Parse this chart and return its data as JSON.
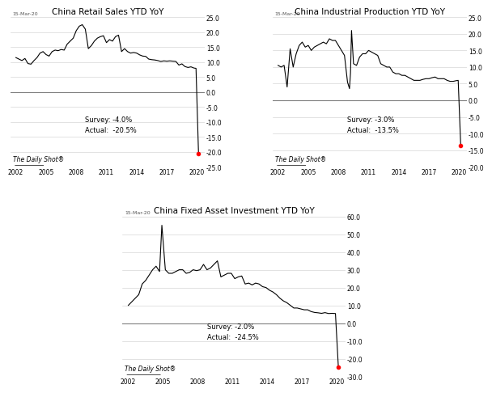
{
  "title1": "China Retail Sales YTD YoY",
  "title2": "China Industrial Production YTD YoY",
  "title3": "China Fixed Asset Investment YTD YoY",
  "date_label": "15-Mar-20",
  "watermark": "The Daily Shot®",
  "chart1": {
    "survey": -4.0,
    "actual": -20.5,
    "ylim": [
      -25.0,
      25.0
    ],
    "yticks": [
      -25.0,
      -20.0,
      -15.0,
      -10.0,
      -5.0,
      0.0,
      5.0,
      10.0,
      15.0,
      20.0,
      25.0
    ],
    "survey_text": "Survey: -4.0%",
    "actual_text": "Actual:  -20.5%",
    "data_x": [
      2002,
      2002.3,
      2002.6,
      2002.9,
      2003.2,
      2003.5,
      2003.8,
      2004.1,
      2004.4,
      2004.7,
      2005.0,
      2005.3,
      2005.6,
      2005.9,
      2006.2,
      2006.5,
      2006.8,
      2007.1,
      2007.4,
      2007.7,
      2008.0,
      2008.3,
      2008.6,
      2008.9,
      2009.2,
      2009.5,
      2009.8,
      2010.1,
      2010.4,
      2010.7,
      2011.0,
      2011.3,
      2011.6,
      2011.9,
      2012.2,
      2012.5,
      2012.8,
      2013.1,
      2013.4,
      2013.7,
      2014.0,
      2014.3,
      2014.6,
      2014.9,
      2015.2,
      2015.5,
      2015.8,
      2016.1,
      2016.4,
      2016.7,
      2017.0,
      2017.3,
      2017.6,
      2017.9,
      2018.2,
      2018.5,
      2018.8,
      2019.1,
      2019.4,
      2019.7,
      2019.9,
      2020.15
    ],
    "data_y": [
      11.5,
      11.0,
      10.5,
      11.2,
      9.5,
      9.3,
      10.5,
      11.5,
      13.0,
      13.5,
      12.5,
      12.0,
      13.5,
      14.0,
      13.8,
      14.2,
      14.0,
      16.0,
      17.0,
      18.0,
      20.5,
      22.0,
      22.5,
      21.0,
      14.5,
      15.5,
      17.0,
      18.0,
      18.5,
      18.8,
      16.5,
      17.5,
      17.0,
      18.5,
      19.0,
      13.5,
      14.5,
      13.5,
      13.0,
      13.2,
      13.0,
      12.4,
      12.0,
      11.9,
      11.0,
      10.8,
      10.7,
      10.5,
      10.2,
      10.4,
      10.3,
      10.4,
      10.3,
      10.2,
      9.0,
      9.4,
      8.5,
      8.2,
      8.4,
      8.0,
      7.9,
      -20.5
    ]
  },
  "chart2": {
    "survey": -3.0,
    "actual": -13.5,
    "ylim": [
      -20.0,
      25.0
    ],
    "yticks": [
      -20.0,
      -15.0,
      -10.0,
      -5.0,
      0.0,
      5.0,
      10.0,
      15.0,
      20.0,
      25.0
    ],
    "survey_text": "Survey: -3.0%",
    "actual_text": "Actual:  -13.5%",
    "data_x": [
      2002,
      2002.3,
      2002.6,
      2002.9,
      2003.2,
      2003.5,
      2003.8,
      2004.1,
      2004.4,
      2004.7,
      2005.0,
      2005.3,
      2005.6,
      2005.9,
      2006.2,
      2006.5,
      2006.8,
      2007.1,
      2007.4,
      2007.7,
      2008.0,
      2008.3,
      2008.6,
      2008.9,
      2009.1,
      2009.2,
      2009.3,
      2009.5,
      2009.8,
      2010.1,
      2010.4,
      2010.7,
      2011.0,
      2011.3,
      2011.6,
      2011.9,
      2012.2,
      2012.5,
      2012.8,
      2013.1,
      2013.4,
      2013.7,
      2014.0,
      2014.3,
      2014.6,
      2014.9,
      2015.2,
      2015.5,
      2015.8,
      2016.1,
      2016.4,
      2016.7,
      2017.0,
      2017.3,
      2017.6,
      2017.9,
      2018.2,
      2018.5,
      2018.8,
      2019.1,
      2019.4,
      2019.7,
      2019.9,
      2020.15
    ],
    "data_y": [
      10.5,
      10.0,
      10.5,
      4.0,
      15.5,
      10.0,
      14.0,
      16.5,
      17.5,
      16.0,
      16.5,
      15.0,
      16.0,
      16.5,
      17.0,
      17.5,
      17.0,
      18.5,
      18.0,
      18.0,
      16.5,
      15.0,
      13.5,
      5.5,
      3.5,
      8.3,
      21.0,
      11.0,
      10.5,
      13.0,
      14.0,
      14.0,
      15.0,
      14.5,
      14.0,
      13.5,
      11.0,
      10.5,
      10.0,
      10.0,
      8.5,
      8.0,
      8.0,
      7.5,
      7.5,
      7.0,
      6.5,
      6.0,
      6.0,
      6.0,
      6.3,
      6.5,
      6.5,
      6.8,
      7.0,
      6.5,
      6.5,
      6.5,
      6.0,
      5.7,
      5.7,
      5.9,
      6.0,
      -13.5
    ]
  },
  "chart3": {
    "survey": -2.0,
    "actual": -24.5,
    "ylim": [
      -30.0,
      60.0
    ],
    "yticks": [
      -30.0,
      -20.0,
      -10.0,
      0.0,
      10.0,
      20.0,
      30.0,
      40.0,
      50.0,
      60.0
    ],
    "survey_text": "Survey: -2.0%",
    "actual_text": "Actual:  -24.5%",
    "data_x": [
      2002,
      2002.3,
      2002.6,
      2002.9,
      2003.2,
      2003.5,
      2003.8,
      2004.1,
      2004.4,
      2004.7,
      2004.9,
      2005.2,
      2005.5,
      2005.8,
      2006.1,
      2006.4,
      2006.7,
      2007.0,
      2007.3,
      2007.6,
      2007.9,
      2008.2,
      2008.5,
      2008.8,
      2009.1,
      2009.4,
      2009.7,
      2010.0,
      2010.3,
      2010.6,
      2010.9,
      2011.2,
      2011.5,
      2011.8,
      2012.1,
      2012.4,
      2012.7,
      2013.0,
      2013.3,
      2013.6,
      2013.9,
      2014.2,
      2014.5,
      2014.8,
      2015.1,
      2015.4,
      2015.7,
      2016.0,
      2016.3,
      2016.6,
      2016.9,
      2017.2,
      2017.5,
      2017.8,
      2018.1,
      2018.4,
      2018.7,
      2019.0,
      2019.3,
      2019.6,
      2019.9,
      2020.15
    ],
    "data_y": [
      10.0,
      12.0,
      14.0,
      16.0,
      22.0,
      24.0,
      27.0,
      30.0,
      32.0,
      29.0,
      55.0,
      30.0,
      28.0,
      28.0,
      29.0,
      30.0,
      30.0,
      28.0,
      28.5,
      30.0,
      29.5,
      30.0,
      33.0,
      30.0,
      31.0,
      33.0,
      35.0,
      26.0,
      27.0,
      28.0,
      28.0,
      25.0,
      26.0,
      26.5,
      22.0,
      22.5,
      21.5,
      22.5,
      22.0,
      20.5,
      20.0,
      18.5,
      17.5,
      16.0,
      14.0,
      12.5,
      11.5,
      10.0,
      8.5,
      8.5,
      8.0,
      7.5,
      7.5,
      6.5,
      6.0,
      5.8,
      5.5,
      5.9,
      5.4,
      5.5,
      5.4,
      -24.5
    ]
  },
  "line_color": "#000000",
  "dot_color": "#ff0000",
  "zero_line_color": "#808080",
  "bg_color": "#ffffff",
  "text_color": "#000000",
  "xlabel_color": "#555555",
  "grid_color": "#cccccc",
  "xticks": [
    2002,
    2005,
    2008,
    2011,
    2014,
    2017,
    2020
  ]
}
